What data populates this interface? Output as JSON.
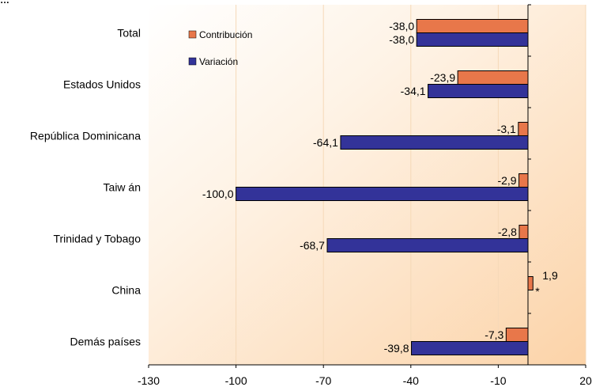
{
  "chart_data": {
    "type": "bar",
    "orientation": "horizontal",
    "title": "",
    "categories": [
      "Total",
      "Estados Unidos",
      "República Dominicana",
      "Taiw án",
      "Trinidad y Tobago",
      "China",
      "Demás países"
    ],
    "series": [
      {
        "name": "Contribución",
        "color": "#E8774A",
        "values": [
          -38.0,
          -23.9,
          -3.1,
          -2.9,
          -2.8,
          1.9,
          -7.3
        ],
        "labels": [
          "-38,0",
          "-23,9",
          "-3,1",
          "-2,9",
          "-2,8",
          "1,9",
          "-7,3"
        ]
      },
      {
        "name": "Variación",
        "color": "#333399",
        "values": [
          -38.0,
          -34.1,
          -64.1,
          -100.0,
          -68.7,
          null,
          -39.8
        ],
        "labels": [
          "-38,0",
          "-34,1",
          "-64,1",
          "-100,0",
          "-68,7",
          "",
          "-39,8"
        ]
      }
    ],
    "annotation": "*",
    "xlim": [
      -130,
      20
    ],
    "xticks": [
      -130,
      -100,
      -70,
      -40,
      -10,
      20
    ],
    "xlabel": "",
    "ylabel": "",
    "grid": "vertical",
    "legend": "top-left inside plot",
    "background": "gradient white to peach"
  }
}
